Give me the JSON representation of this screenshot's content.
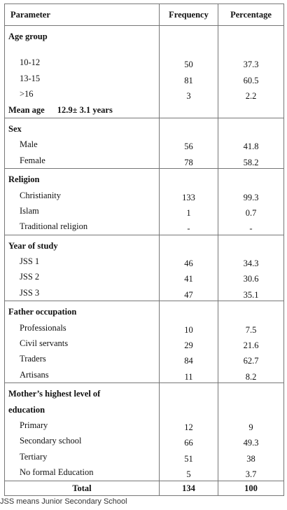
{
  "headers": {
    "parameter": "Parameter",
    "frequency": "Frequency",
    "percentage": "Percentage"
  },
  "sections": [
    {
      "title": "Age group",
      "rows": [
        {
          "label": "10-12",
          "frequency": "50",
          "percentage": "37.3"
        },
        {
          "label": "13-15",
          "frequency": "81",
          "percentage": "60.5"
        },
        {
          "label": ">16",
          "frequency": "3",
          "percentage": "2.2"
        }
      ],
      "mean": {
        "label": "Mean age",
        "value": "12.9± 3.1 years"
      }
    },
    {
      "title": "Sex",
      "rows": [
        {
          "label": "Male",
          "frequency": "56",
          "percentage": "41.8"
        },
        {
          "label": "Female",
          "frequency": "78",
          "percentage": "58.2"
        }
      ]
    },
    {
      "title": "Religion",
      "rows": [
        {
          "label": "Christianity",
          "frequency": "133",
          "percentage": "99.3"
        },
        {
          "label": "Islam",
          "frequency": "1",
          "percentage": "0.7"
        },
        {
          "label": "Traditional religion",
          "frequency": "-",
          "percentage": "-"
        }
      ]
    },
    {
      "title": "Year of study",
      "rows": [
        {
          "label": "JSS 1",
          "frequency": "46",
          "percentage": "34.3"
        },
        {
          "label": "JSS 2",
          "frequency": "41",
          "percentage": "30.6"
        },
        {
          "label": "JSS 3",
          "frequency": "47",
          "percentage": "35.1"
        }
      ]
    },
    {
      "title": "Father occupation",
      "rows": [
        {
          "label": "Professionals",
          "frequency": "10",
          "percentage": "7.5"
        },
        {
          "label": "Civil servants",
          "frequency": "29",
          "percentage": "21.6"
        },
        {
          "label": "Traders",
          "frequency": "84",
          "percentage": "62.7"
        },
        {
          "label": "Artisans",
          "frequency": "11",
          "percentage": "8.2"
        }
      ]
    },
    {
      "title_lines": [
        "Mother’s highest level of",
        "education"
      ],
      "rows": [
        {
          "label": "Primary",
          "frequency": "12",
          "percentage": "9"
        },
        {
          "label": "Secondary school",
          "frequency": "66",
          "percentage": "49.3"
        },
        {
          "label": "Tertiary",
          "frequency": "51",
          "percentage": "38"
        },
        {
          "label": "No formal Education",
          "frequency": "5",
          "percentage": "3.7"
        }
      ]
    }
  ],
  "total": {
    "label": "Total",
    "frequency": "134",
    "percentage": "100"
  },
  "footnote": "JSS means Junior Secondary School"
}
